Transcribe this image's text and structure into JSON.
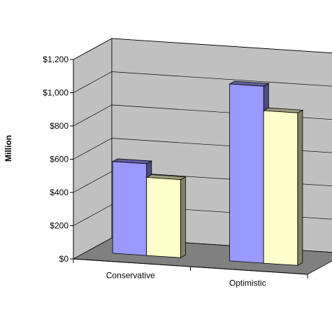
{
  "chart_data": {
    "type": "bar",
    "view": "3d-clustered-column",
    "title": "",
    "xlabel": "",
    "ylabel": "Million",
    "categories": [
      "Conservative",
      "Optimistic"
    ],
    "series": [
      {
        "values": [
          552,
          1065
        ],
        "color": "#9999ff"
      },
      {
        "values": [
          470,
          918
        ],
        "color": "#ffffcc"
      }
    ],
    "ylim": [
      0,
      1200
    ],
    "yticks": [
      0,
      200,
      400,
      600,
      800,
      1000,
      1200
    ],
    "ytick_labels": [
      "$0",
      "$200",
      "$400",
      "$600",
      "$800",
      "$1,000",
      "$1,200"
    ],
    "grid": true,
    "legend": "none",
    "colors": {
      "wall": "#c0c0c0",
      "floor": "#808080"
    }
  }
}
